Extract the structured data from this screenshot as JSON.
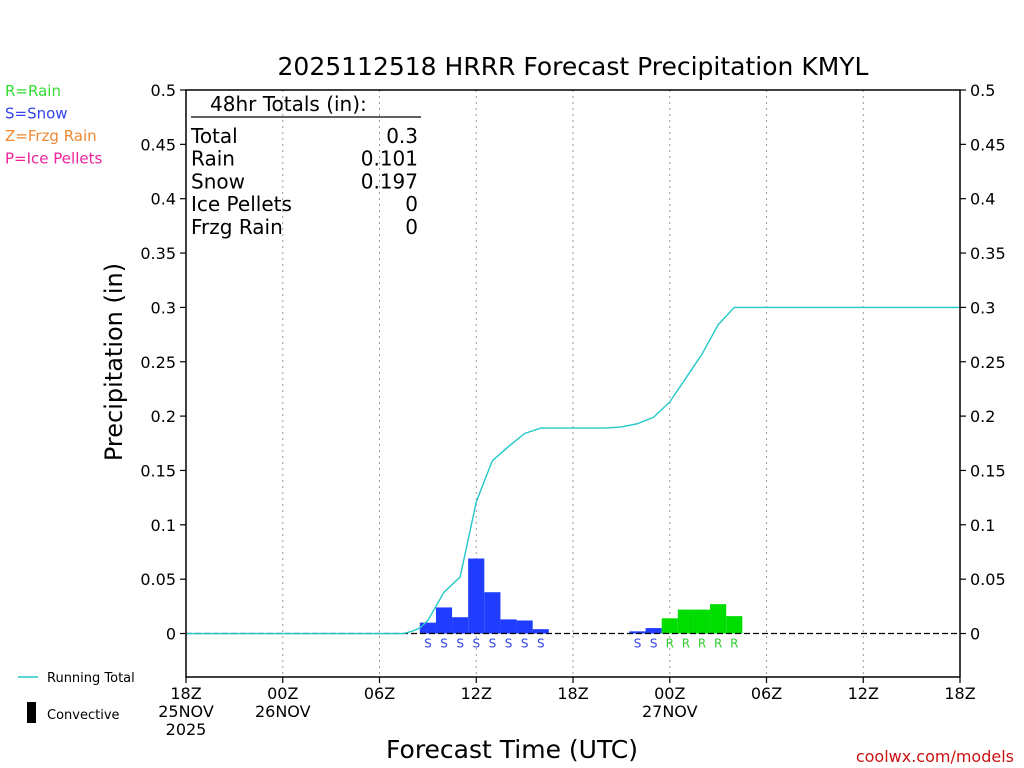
{
  "chart_data": {
    "type": "bar",
    "title": "2025112518 HRRR Forecast Precipitation KMYL",
    "xlabel": "Forecast Time (UTC)",
    "ylabel": "Precipitation (in)",
    "ylim": [
      -0.04,
      0.5
    ],
    "xlim": [
      0,
      48
    ],
    "yticks": [
      "0",
      "0.05",
      "0.1",
      "0.15",
      "0.2",
      "0.25",
      "0.3",
      "0.35",
      "0.4",
      "0.45",
      "0.5"
    ],
    "xticks": [
      {
        "h": 0,
        "lines": [
          "18Z",
          "25NOV",
          "2025"
        ]
      },
      {
        "h": 6,
        "lines": [
          "00Z",
          "26NOV"
        ]
      },
      {
        "h": 12,
        "lines": [
          "06Z"
        ]
      },
      {
        "h": 18,
        "lines": [
          "12Z"
        ]
      },
      {
        "h": 24,
        "lines": [
          "18Z"
        ]
      },
      {
        "h": 30,
        "lines": [
          "00Z",
          "27NOV"
        ]
      },
      {
        "h": 36,
        "lines": [
          "06Z"
        ]
      },
      {
        "h": 42,
        "lines": [
          "12Z"
        ]
      },
      {
        "h": 48,
        "lines": [
          "18Z"
        ]
      }
    ],
    "legend_types": [
      {
        "label": "R=Rain",
        "color": "#33dd33"
      },
      {
        "label": "S=Snow",
        "color": "#3344ee"
      },
      {
        "label": "Z=Frzg Rain",
        "color": "#ee8833"
      },
      {
        "label": "P=Ice Pellets",
        "color": "#ee2299"
      }
    ],
    "legend_lines": {
      "running_total": "Running Total",
      "convective": "Convective"
    },
    "colors": {
      "snow": "#1f3cff",
      "rain": "#00dd00",
      "running_total": "#22c8c8"
    },
    "totals": {
      "header": "48hr Totals (in):",
      "rows": [
        {
          "label": "Total",
          "value": "0.3"
        },
        {
          "label": "Rain",
          "value": "0.101"
        },
        {
          "label": "Snow",
          "value": "0.197"
        },
        {
          "label": "Ice Pellets",
          "value": "0"
        },
        {
          "label": "Frzg Rain",
          "value": "0"
        }
      ]
    },
    "bars": [
      {
        "h": 15,
        "value": 0.01,
        "type": "S"
      },
      {
        "h": 16,
        "value": 0.024,
        "type": "S"
      },
      {
        "h": 17,
        "value": 0.015,
        "type": "S"
      },
      {
        "h": 18,
        "value": 0.069,
        "type": "S"
      },
      {
        "h": 19,
        "value": 0.038,
        "type": "S"
      },
      {
        "h": 20,
        "value": 0.013,
        "type": "S"
      },
      {
        "h": 21,
        "value": 0.012,
        "type": "S"
      },
      {
        "h": 22,
        "value": 0.004,
        "type": "S"
      },
      {
        "h": 28,
        "value": 0.002,
        "type": "S"
      },
      {
        "h": 29,
        "value": 0.005,
        "type": "S"
      },
      {
        "h": 30,
        "value": 0.014,
        "type": "R"
      },
      {
        "h": 31,
        "value": 0.022,
        "type": "R"
      },
      {
        "h": 32,
        "value": 0.022,
        "type": "R"
      },
      {
        "h": 33,
        "value": 0.027,
        "type": "R"
      },
      {
        "h": 34,
        "value": 0.016,
        "type": "R"
      }
    ],
    "running_total": {
      "x": [
        0,
        13.5,
        14,
        14.5,
        15,
        16,
        17,
        18,
        19,
        20,
        21,
        22,
        23,
        24,
        26,
        27,
        28,
        29,
        30,
        31,
        32,
        33,
        34,
        35,
        48
      ],
      "y": [
        0,
        0,
        0.002,
        0.005,
        0.012,
        0.038,
        0.052,
        0.121,
        0.159,
        0.172,
        0.184,
        0.189,
        0.189,
        0.189,
        0.189,
        0.19,
        0.193,
        0.199,
        0.213,
        0.235,
        0.257,
        0.284,
        0.3,
        0.3,
        0.3
      ]
    },
    "credit": "coolwx.com/models"
  }
}
